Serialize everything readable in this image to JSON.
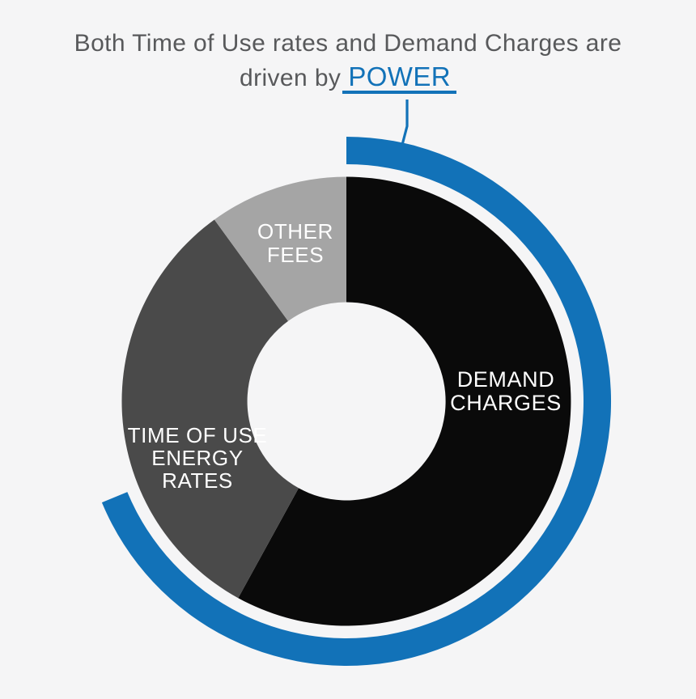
{
  "title": {
    "line1": "Both Time of Use rates and Demand Charges are",
    "line2_prefix": "driven by",
    "line2_highlight": "POWER"
  },
  "colors": {
    "background": "#f5f5f6",
    "title_text": "#58595b",
    "accent_blue": "#1272b8",
    "label_text": "#ffffff",
    "demand_charges": "#0a0a0a",
    "time_of_use": "#4a4a4a",
    "other_fees": "#a5a5a5"
  },
  "chart_data": {
    "type": "pie",
    "subtype": "donut",
    "title": "Both Time of Use rates and Demand Charges are driven by POWER",
    "legend_position": "labels-inside-slices",
    "segments": [
      {
        "label": "DEMAND\nCHARGES",
        "value_pct": 58,
        "color": "#0a0a0a"
      },
      {
        "label": "TIME OF USE\nENERGY RATES",
        "value_pct": 32,
        "color": "#4a4a4a"
      },
      {
        "label": "OTHER\nFEES",
        "value_pct": 10,
        "color": "#a5a5a5"
      }
    ],
    "highlight_arc": {
      "start_deg": 0,
      "sweep_deg": 247.5,
      "color": "#1272b8",
      "callout_target": "POWER"
    }
  }
}
